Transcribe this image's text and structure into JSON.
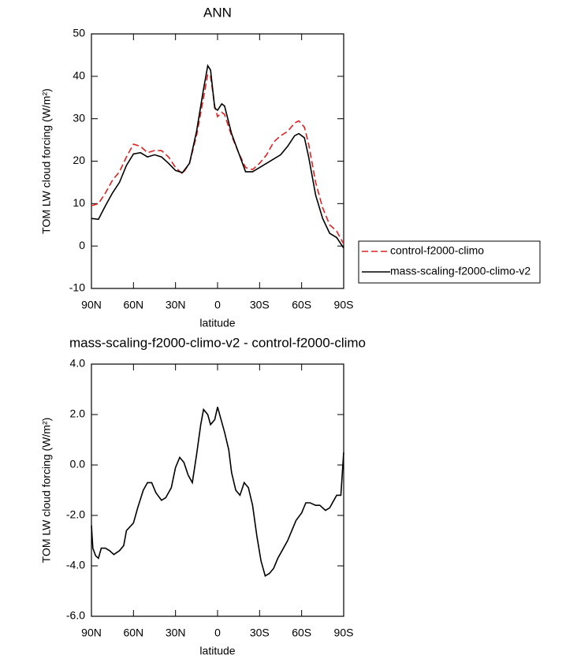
{
  "chart_data": [
    {
      "type": "line",
      "title": "ANN",
      "xlabel": "latitude",
      "ylabel": "TOM LW cloud forcing (W/m²)",
      "xlim": [
        90,
        -90
      ],
      "xticks": [
        {
          "value": 90,
          "label": "90N"
        },
        {
          "value": 60,
          "label": "60N"
        },
        {
          "value": 30,
          "label": "30N"
        },
        0,
        {
          "value": -30,
          "label": "30S"
        },
        {
          "value": -60,
          "label": "60S"
        },
        {
          "value": -90,
          "label": "90S"
        }
      ],
      "ylim": [
        -10,
        50
      ],
      "yticks": [
        -10,
        0,
        10,
        20,
        30,
        40,
        50
      ],
      "legend": "outside-right",
      "x": [
        90,
        85,
        80,
        75,
        70,
        65,
        60,
        55,
        50,
        45,
        40,
        35,
        30,
        25,
        20,
        15,
        10,
        7,
        5,
        2,
        0,
        -3,
        -5,
        -10,
        -15,
        -20,
        -25,
        -30,
        -35,
        -40,
        -45,
        -50,
        -55,
        -58,
        -62,
        -65,
        -70,
        -75,
        -80,
        -85,
        -90
      ],
      "series": [
        {
          "name": "control-f2000-climo",
          "color": "#e02020",
          "linestyle": "dashed",
          "values": [
            9.5,
            10,
            12.5,
            15.5,
            17.5,
            21,
            24,
            23.5,
            22,
            22.5,
            22.5,
            21,
            18.5,
            17,
            19.5,
            26,
            35,
            40.5,
            40,
            33,
            30.5,
            31.5,
            31,
            26,
            22,
            18.5,
            18,
            19.5,
            21.5,
            24.5,
            26,
            27,
            29,
            29.5,
            28,
            24,
            15,
            9,
            5,
            3.5,
            0.5
          ]
        },
        {
          "name": "mass-scaling-f2000-climo-v2",
          "color": "#000000",
          "linestyle": "solid",
          "values": [
            6.5,
            6.3,
            9.5,
            12.5,
            15,
            19,
            21.7,
            22,
            21,
            21.5,
            21,
            19.5,
            17.8,
            17.3,
            19.5,
            27,
            37,
            42.5,
            41.5,
            32.5,
            32,
            33.5,
            33,
            26.5,
            22,
            17.5,
            17.5,
            18.5,
            19.5,
            20.5,
            21.5,
            23.5,
            26,
            26.5,
            25.5,
            21,
            12,
            6.5,
            3,
            2,
            -0.5
          ]
        }
      ]
    },
    {
      "type": "line",
      "title": "mass-scaling-f2000-climo-v2 - control-f2000-climo",
      "xlabel": "latitude",
      "ylabel": "TOM LW cloud forcing (W/m²)",
      "xlim": [
        90,
        -90
      ],
      "xticks": [
        {
          "value": 90,
          "label": "90N"
        },
        {
          "value": 60,
          "label": "60N"
        },
        {
          "value": 30,
          "label": "30N"
        },
        0,
        {
          "value": -30,
          "label": "30S"
        },
        {
          "value": -60,
          "label": "60S"
        },
        {
          "value": -90,
          "label": "90S"
        }
      ],
      "ylim": [
        -6,
        4
      ],
      "yticks": [
        {
          "value": -6,
          "label": "-6.0"
        },
        {
          "value": -4,
          "label": "-4.0"
        },
        {
          "value": -2,
          "label": "-2.0"
        },
        {
          "value": 0,
          "label": "0.0"
        },
        {
          "value": 2,
          "label": "2.0"
        },
        {
          "value": 4,
          "label": "4.0"
        }
      ],
      "x": [
        90,
        89,
        87,
        85,
        83,
        80,
        77,
        74,
        70,
        67,
        65,
        60,
        57,
        53,
        50,
        47,
        44,
        40,
        37,
        33,
        30,
        27,
        24,
        21,
        18,
        15,
        12,
        10,
        7,
        5,
        2,
        0,
        -2,
        -5,
        -8,
        -10,
        -13,
        -16,
        -19,
        -22,
        -25,
        -28,
        -31,
        -34,
        -37,
        -40,
        -43,
        -46,
        -50,
        -53,
        -56,
        -60,
        -63,
        -66,
        -70,
        -73,
        -77,
        -80,
        -83,
        -85,
        -88,
        -90
      ],
      "series": [
        {
          "color": "#000000",
          "linestyle": "solid",
          "values": [
            -2.4,
            -3.3,
            -3.6,
            -3.7,
            -3.3,
            -3.3,
            -3.4,
            -3.55,
            -3.4,
            -3.2,
            -2.6,
            -2.3,
            -1.7,
            -1.0,
            -0.7,
            -0.7,
            -1.1,
            -1.4,
            -1.3,
            -0.9,
            -0.1,
            0.3,
            0.1,
            -0.4,
            -0.7,
            0.4,
            1.6,
            2.2,
            2.0,
            1.6,
            1.8,
            2.3,
            1.9,
            1.3,
            0.6,
            -0.3,
            -1.0,
            -1.2,
            -0.7,
            -0.9,
            -1.6,
            -2.8,
            -3.8,
            -4.4,
            -4.3,
            -4.1,
            -3.7,
            -3.4,
            -3.0,
            -2.6,
            -2.2,
            -1.9,
            -1.5,
            -1.5,
            -1.6,
            -1.6,
            -1.8,
            -1.7,
            -1.4,
            -1.2,
            -1.2,
            0.5
          ]
        }
      ]
    }
  ]
}
